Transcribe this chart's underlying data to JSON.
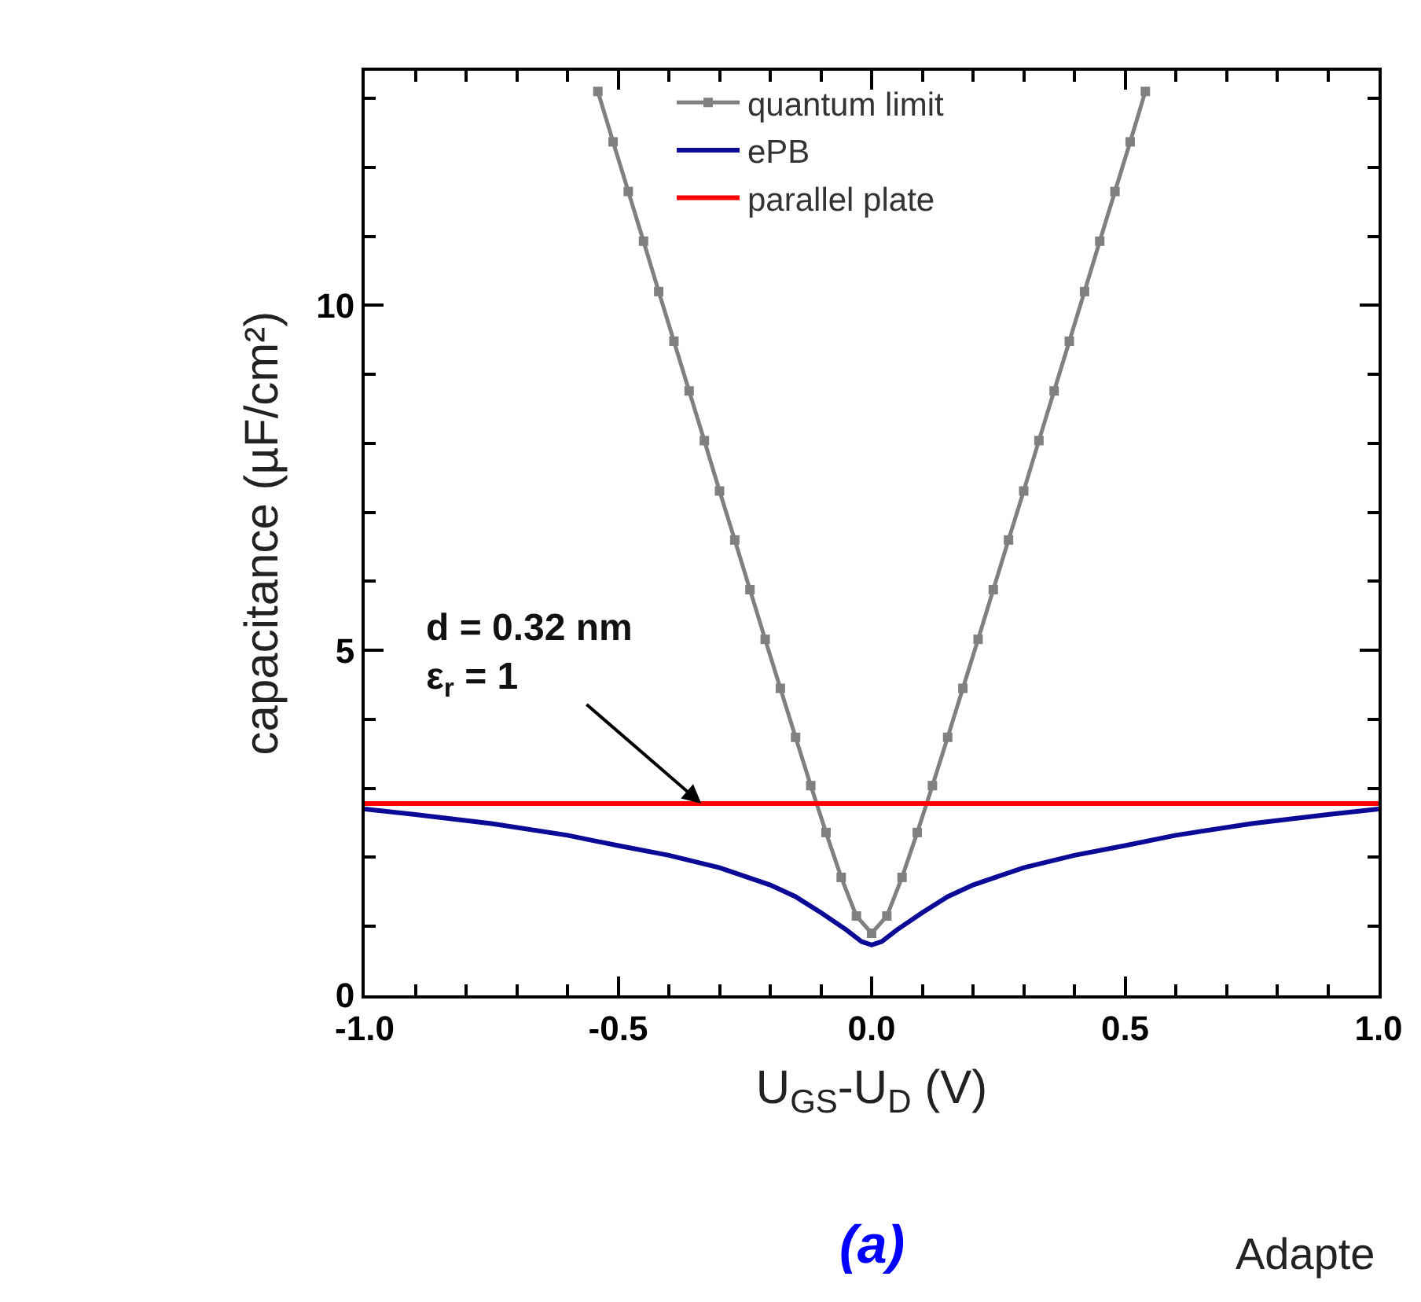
{
  "chart_data": {
    "type": "line",
    "xlabel": "U$_{GS}$-U$_{D}$ (V)",
    "ylabel": "capacitance (µF/cm²)",
    "xlim": [
      -1.0,
      1.0
    ],
    "xticks": [
      {
        "value": -1.0,
        "label": "-1.0"
      },
      {
        "value": -0.5,
        "label": "-0.5"
      },
      {
        "value": 0.0,
        "label": "0.0"
      },
      {
        "value": 0.5,
        "label": "0.5"
      },
      {
        "value": 1.0,
        "label": "1.0"
      }
    ],
    "ylim": [
      0,
      13.4
    ],
    "yticks": [
      0,
      5,
      10
    ],
    "legend": "top",
    "series": [
      {
        "name": "quantum limit",
        "color": "#808080",
        "marker": "square",
        "x": [
          -0.54,
          -0.51,
          -0.48,
          -0.45,
          -0.42,
          -0.39,
          -0.36,
          -0.33,
          -0.3,
          -0.27,
          -0.24,
          -0.21,
          -0.18,
          -0.15,
          -0.12,
          -0.09,
          -0.06,
          -0.03,
          0,
          0.03,
          0.06,
          0.09,
          0.12,
          0.15,
          0.18,
          0.21,
          0.24,
          0.27,
          0.3,
          0.33,
          0.36,
          0.39,
          0.42,
          0.45,
          0.48,
          0.51,
          0.54
        ],
        "values": [
          13.1,
          12.37,
          11.65,
          10.93,
          10.2,
          9.48,
          8.76,
          8.04,
          7.31,
          6.6,
          5.88,
          5.16,
          4.45,
          3.74,
          3.04,
          2.36,
          1.71,
          1.15,
          0.9,
          1.15,
          1.71,
          2.36,
          3.04,
          3.74,
          4.45,
          5.16,
          5.88,
          6.6,
          7.31,
          8.04,
          8.76,
          9.48,
          10.2,
          10.93,
          11.65,
          12.37,
          13.1
        ]
      },
      {
        "name": "ePB",
        "color": "#0a0a96",
        "x": [
          -1.0,
          -0.9,
          -0.75,
          -0.6,
          -0.5,
          -0.4,
          -0.3,
          -0.2,
          -0.15,
          -0.1,
          -0.05,
          -0.02,
          0,
          0.02,
          0.05,
          0.1,
          0.15,
          0.2,
          0.3,
          0.4,
          0.5,
          0.6,
          0.75,
          0.9,
          1.0
        ],
        "values": [
          2.7,
          2.62,
          2.49,
          2.32,
          2.17,
          2.03,
          1.85,
          1.6,
          1.43,
          1.2,
          0.95,
          0.78,
          0.73,
          0.78,
          0.95,
          1.2,
          1.43,
          1.6,
          1.85,
          2.03,
          2.17,
          2.32,
          2.49,
          2.62,
          2.7
        ]
      },
      {
        "name": "parallel plate",
        "color": "#ff0000",
        "x": [
          -1.0,
          1.0
        ],
        "values": [
          2.78,
          2.78
        ]
      }
    ],
    "annotations": [
      {
        "text": "d = 0.32 nm\nε$_{r}$ = 1",
        "x": -0.336,
        "y": 2.78
      },
      "(a)",
      "Adapte"
    ]
  }
}
